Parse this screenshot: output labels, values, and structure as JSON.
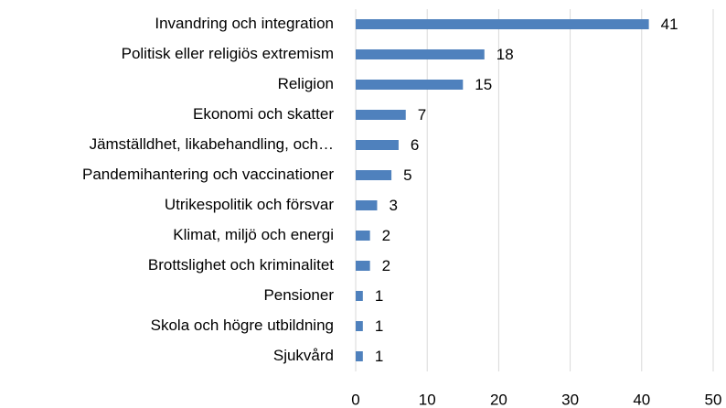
{
  "chart_data": {
    "type": "bar",
    "orientation": "horizontal",
    "categories": [
      "Invandring och integration",
      "Politisk eller religiös extremism",
      "Religion",
      "Ekonomi och skatter",
      "Jämställdhet, likabehandling, och…",
      "Pandemihantering och vaccinationer",
      "Utrikespolitik och försvar",
      "Klimat, miljö och energi",
      "Brottslighet och kriminalitet",
      "Pensioner",
      "Skola och högre utbildning",
      "Sjukvård"
    ],
    "values": [
      41,
      18,
      15,
      7,
      6,
      5,
      3,
      2,
      2,
      1,
      1,
      1
    ],
    "color": "#4f81bd",
    "xlim": [
      0,
      50
    ],
    "xticks": [
      0,
      10,
      20,
      30,
      40,
      50
    ],
    "grid": true
  }
}
